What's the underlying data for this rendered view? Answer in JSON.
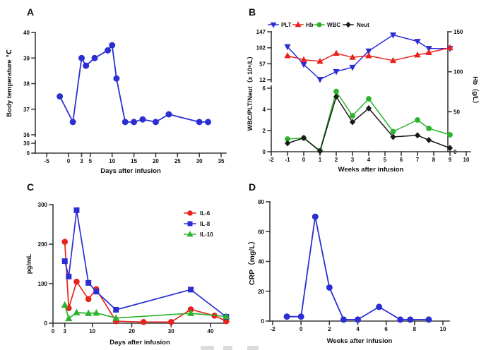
{
  "colors": {
    "blue": "#2b2fd2",
    "red": "#e8231d",
    "green": "#2db32d",
    "black": "#1a1a1a",
    "axis": "#3a3a3a",
    "text": "#111111"
  },
  "chart_data": [
    {
      "panel": "A",
      "panel_label": "A",
      "type": "line",
      "xlabel": "Days after infusion",
      "ylabel": "Body temperature ℃",
      "x_ticks": [
        -5,
        0,
        3,
        5,
        10,
        15,
        20,
        25,
        30,
        35
      ],
      "xlim": [
        -5,
        35
      ],
      "y_ticks_main": [
        36,
        37,
        38,
        39,
        40
      ],
      "y_ticks_below_break": [
        30,
        0
      ],
      "ylim_main": [
        36,
        40
      ],
      "axis_break": "y-axis broken between 0/30 and 36",
      "series": [
        {
          "name": "Body temperature",
          "color_key": "blue",
          "marker": "circle",
          "points": [
            [
              -2,
              37.5
            ],
            [
              1,
              36.5
            ],
            [
              3,
              39.0
            ],
            [
              4,
              38.7
            ],
            [
              6,
              39.0
            ],
            [
              9,
              39.3
            ],
            [
              10,
              39.5
            ],
            [
              11,
              38.2
            ],
            [
              13,
              36.5
            ],
            [
              15,
              36.5
            ],
            [
              17,
              36.6
            ],
            [
              20,
              36.5
            ],
            [
              23,
              36.8
            ],
            [
              30,
              36.5
            ],
            [
              32,
              36.5
            ]
          ]
        }
      ]
    },
    {
      "panel": "B",
      "panel_label": "B",
      "type": "line",
      "xlabel": "Weeks after infusion",
      "ylabel_left": "WBC/PLT/Neut（x 10⁹/L）",
      "ylabel_right": "Hb（g/L）",
      "x_ticks": [
        -2,
        -1,
        0,
        1,
        2,
        3,
        4,
        5,
        6,
        7,
        8,
        9,
        10
      ],
      "xlim": [
        -2,
        10
      ],
      "y_left_upper_ticks": [
        12,
        57,
        102,
        147
      ],
      "y_left_lower_ticks": [
        0,
        2,
        4,
        6
      ],
      "y_right_ticks": [
        0,
        50,
        100,
        150
      ],
      "axis_break": "left y-axis broken between 6 and 12",
      "legend": [
        "PLT",
        "Hb",
        "WBC",
        "Neut"
      ],
      "x": [
        -1,
        0,
        1,
        2,
        3,
        4,
        5.5,
        7,
        7.7,
        9
      ],
      "series": [
        {
          "name": "PLT",
          "color_key": "blue",
          "marker": "triangle-down",
          "axis": "left-upper",
          "values": [
            105,
            55,
            13,
            35,
            47,
            93,
            138,
            120,
            100,
            100
          ]
        },
        {
          "name": "Hb",
          "color_key": "red",
          "marker": "triangle-up",
          "axis": "right",
          "values": [
            120,
            115,
            113,
            123,
            118,
            120,
            114,
            121,
            124,
            130
          ]
        },
        {
          "name": "WBC",
          "color_key": "green",
          "marker": "circle",
          "axis": "left-lower",
          "values": [
            1.2,
            1.3,
            0.1,
            5.7,
            3.4,
            5.0,
            1.9,
            3.0,
            2.2,
            1.6
          ]
        },
        {
          "name": "Neut",
          "color_key": "black",
          "marker": "diamond",
          "axis": "left-lower",
          "values": [
            0.8,
            1.3,
            0.05,
            5.2,
            2.8,
            4.1,
            1.4,
            1.55,
            1.1,
            0.35
          ]
        }
      ]
    },
    {
      "panel": "C",
      "panel_label": "C",
      "type": "line",
      "xlabel": "Days after infusion",
      "ylabel": "pg/mL",
      "x_ticks": [
        0,
        3,
        10,
        20,
        30,
        40
      ],
      "xlim": [
        0,
        45
      ],
      "y_ticks": [
        0,
        100,
        200,
        300
      ],
      "ylim": [
        0,
        300
      ],
      "legend": [
        "IL-6",
        "IL-8",
        "IL-10"
      ],
      "series": [
        {
          "name": "IL-6",
          "color_key": "red",
          "marker": "circle",
          "points": [
            [
              3,
              206
            ],
            [
              4,
              38
            ],
            [
              6,
              105
            ],
            [
              9,
              61
            ],
            [
              11,
              86
            ],
            [
              16,
              5
            ],
            [
              23,
              3
            ],
            [
              30,
              3
            ],
            [
              35,
              35
            ],
            [
              41,
              19
            ],
            [
              44,
              5
            ]
          ]
        },
        {
          "name": "IL-8",
          "color_key": "blue",
          "marker": "square",
          "points": [
            [
              3,
              157
            ],
            [
              4,
              118
            ],
            [
              6,
              286
            ],
            [
              9,
              102
            ],
            [
              11,
              80
            ],
            [
              16,
              34
            ],
            [
              35,
              85
            ],
            [
              44,
              16
            ]
          ]
        },
        {
          "name": "IL-10",
          "color_key": "green",
          "marker": "triangle-up",
          "points": [
            [
              3,
              46
            ],
            [
              4,
              12
            ],
            [
              6,
              27
            ],
            [
              9,
              25
            ],
            [
              11,
              26
            ],
            [
              16,
              13
            ],
            [
              35,
              25
            ],
            [
              44,
              17
            ]
          ]
        }
      ]
    },
    {
      "panel": "D",
      "panel_label": "D",
      "type": "line",
      "xlabel": "Weeks after infusion",
      "ylabel": "CRP（mg/L）",
      "x_ticks": [
        -2,
        0,
        2,
        4,
        6,
        8,
        10
      ],
      "xlim": [
        -2,
        10
      ],
      "y_ticks": [
        0,
        20,
        40,
        60,
        80
      ],
      "ylim": [
        0,
        80
      ],
      "series": [
        {
          "name": "CRP",
          "color_key": "blue",
          "marker": "circle",
          "points": [
            [
              -1,
              3
            ],
            [
              0,
              3
            ],
            [
              1,
              70
            ],
            [
              2,
              22.5
            ],
            [
              3,
              1
            ],
            [
              4,
              1
            ],
            [
              5.5,
              9.5
            ],
            [
              7,
              1
            ],
            [
              7.7,
              1
            ],
            [
              9,
              1
            ]
          ]
        }
      ]
    }
  ]
}
